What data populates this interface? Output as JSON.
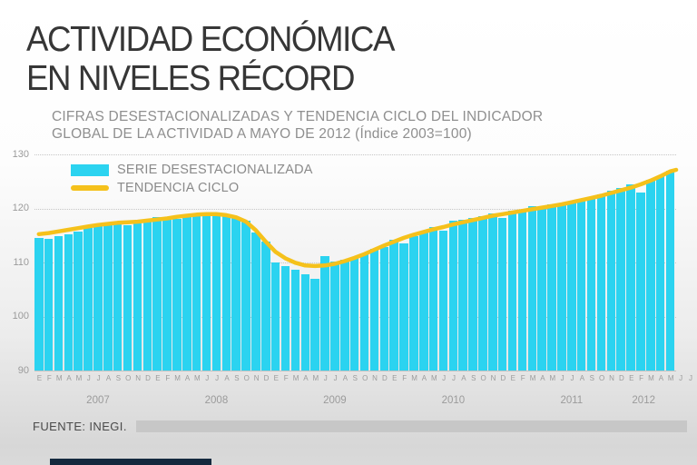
{
  "title": {
    "line1": "ACTIVIDAD ECONÓMICA",
    "line2": "EN NIVELES RÉCORD"
  },
  "subtitle": {
    "line1": "CIFRAS DESESTACIONALIZADAS Y TENDENCIA CICLO DEL INDICADOR",
    "line2": "GLOBAL DE LA ACTIVIDAD A MAYO DE 2012 (Índice 2003=100)"
  },
  "legend": {
    "series": [
      {
        "label": "SERIE DESESTACIONALIZADA",
        "color": "#2BD3F0",
        "type": "bar"
      },
      {
        "label": "TENDENCIA CICLO",
        "color": "#F5C11B",
        "type": "line"
      }
    ]
  },
  "source": {
    "label": "FUENTE: INEGI."
  },
  "colors": {
    "bar": "#2BD3F0",
    "trend": "#F5C11B",
    "title_text": "#363636",
    "subtitle_text": "#8F8F8F",
    "axis_text": "#9B9B9B",
    "grid": "#C6C6C6",
    "source_text": "#4A4A4A",
    "source_bar": "#C7C7C7",
    "brand_bar": "#14293E"
  },
  "chart_data": {
    "type": "bar",
    "title": "ACTIVIDAD ECONÓMICA EN NIVELES RÉCORD",
    "subtitle": "CIFRAS DESESTACIONALIZADAS Y TENDENCIA CICLO DEL INDICADOR GLOBAL DE LA ACTIVIDAD A MAYO DE 2012 (Índice 2003=100)",
    "xlabel": "",
    "ylabel": "Índice 2003=100",
    "ylim": [
      90,
      130
    ],
    "grid": "dotted horizontal",
    "legend_position": "top-left",
    "y_axis": {
      "ticks": [
        90,
        100,
        110,
        120,
        130
      ]
    },
    "x_axis": {
      "month_pattern": [
        "E",
        "F",
        "M",
        "A",
        "M",
        "J",
        "J",
        "A",
        "S",
        "O",
        "N",
        "D"
      ],
      "years": [
        {
          "label": "2007",
          "start": 0,
          "span": 12,
          "center_slot": 6
        },
        {
          "label": "2008",
          "start": 12,
          "span": 12,
          "center_slot": 18
        },
        {
          "label": "2009",
          "start": 24,
          "span": 12,
          "center_slot": 30
        },
        {
          "label": "2010",
          "start": 36,
          "span": 12,
          "center_slot": 42
        },
        {
          "label": "2011",
          "start": 48,
          "span": 12,
          "center_slot": 54
        },
        {
          "label": "2012",
          "start": 60,
          "span": 7,
          "center_slot": 61.3
        }
      ],
      "note": "month slots run E 2007 through J (julio) 2012; data bars end at M (mayo) 2012"
    },
    "series": [
      {
        "name": "SERIE DESESTACIONALIZADA",
        "type": "bar",
        "color": "#2BD3F0",
        "values": [
          114.6,
          114.5,
          115.0,
          115.2,
          115.8,
          116.6,
          117.0,
          117.3,
          117.2,
          116.9,
          117.3,
          117.6,
          118.5,
          117.9,
          118.1,
          119.0,
          118.6,
          119.3,
          119.2,
          119.0,
          118.4,
          117.8,
          115.6,
          113.9,
          110.1,
          109.3,
          108.7,
          107.8,
          107.0,
          111.2,
          110.2,
          110.5,
          110.9,
          111.6,
          112.5,
          112.9,
          114.2,
          113.5,
          114.9,
          115.8,
          116.6,
          115.9,
          117.7,
          118.0,
          118.3,
          118.7,
          119.2,
          118.3,
          119.7,
          119.4,
          120.5,
          120.2,
          120.8,
          121.0,
          121.3,
          121.6,
          122.0,
          122.6,
          123.3,
          123.9,
          124.5,
          123.0,
          125.3,
          126.1,
          127.0
        ]
      },
      {
        "name": "TENDENCIA CICLO",
        "type": "line",
        "color": "#F5C11B",
        "values": [
          115.3,
          115.5,
          115.8,
          116.1,
          116.4,
          116.7,
          117.0,
          117.2,
          117.4,
          117.5,
          117.6,
          117.8,
          118.0,
          118.2,
          118.5,
          118.7,
          118.9,
          119.0,
          119.0,
          118.8,
          118.4,
          117.6,
          116.0,
          113.9,
          112.0,
          110.8,
          110.0,
          109.5,
          109.4,
          109.5,
          109.8,
          110.3,
          110.9,
          111.6,
          112.4,
          113.2,
          113.9,
          114.6,
          115.2,
          115.7,
          116.2,
          116.6,
          117.1,
          117.5,
          117.9,
          118.3,
          118.7,
          119.0,
          119.3,
          119.6,
          119.9,
          120.2,
          120.5,
          120.8,
          121.2,
          121.6,
          122.0,
          122.4,
          122.9,
          123.4,
          123.9,
          124.5,
          125.2,
          126.0,
          126.9
        ]
      }
    ]
  }
}
